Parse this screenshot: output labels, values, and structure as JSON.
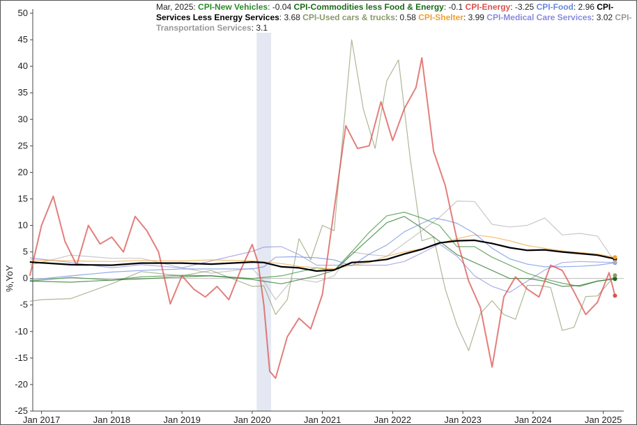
{
  "chart_data": {
    "type": "line",
    "title": "",
    "xlabel": "",
    "ylabel": "%,YoY",
    "ylim": [
      -25,
      50
    ],
    "yticks": [
      50,
      45,
      40,
      35,
      30,
      25,
      20,
      15,
      10,
      5,
      0,
      -5,
      -10,
      -15,
      -20,
      -25
    ],
    "xlim": [
      "2016-11",
      "2025-04"
    ],
    "xticks": [
      "Jan 2017",
      "Jan 2018",
      "Jan 2019",
      "Jan 2020",
      "Jan 2021",
      "Jan 2022",
      "Jan 2023",
      "Jan 2024",
      "Jan 2025"
    ],
    "shaded_period": [
      "2020-02",
      "2020-04"
    ],
    "grid": false,
    "legend_placement": "top",
    "legend_date": "Mar, 2025:",
    "series": [
      {
        "name": "CPI-New Vehicles",
        "color": "#2a8a2a",
        "value_label": "-0.04",
        "x": [
          "2016-11",
          "2017-06",
          "2018-01",
          "2018-06",
          "2019-01",
          "2019-06",
          "2020-01",
          "2020-06",
          "2020-12",
          "2021-03",
          "2021-06",
          "2021-09",
          "2021-12",
          "2022-03",
          "2022-06",
          "2022-09",
          "2022-12",
          "2023-03",
          "2023-06",
          "2023-09",
          "2023-12",
          "2024-03",
          "2024-06",
          "2024-09",
          "2024-12",
          "2025-03"
        ],
        "y": [
          -0.5,
          0.2,
          -0.3,
          0.3,
          0.6,
          0.5,
          0.0,
          0.5,
          2.0,
          1.5,
          5.0,
          8.7,
          11.8,
          12.5,
          11.4,
          10.0,
          6.0,
          6.0,
          4.0,
          2.5,
          1.0,
          -0.1,
          -0.9,
          -1.5,
          -0.5,
          -0.04
        ]
      },
      {
        "name": "CPI-Commodities less Food & Energy",
        "color": "#1a6a1a",
        "value_label": "-0.1",
        "x": [
          "2016-11",
          "2017-06",
          "2018-01",
          "2018-06",
          "2019-01",
          "2019-06",
          "2020-01",
          "2020-06",
          "2020-12",
          "2021-03",
          "2021-06",
          "2021-09",
          "2021-12",
          "2022-03",
          "2022-06",
          "2022-09",
          "2022-12",
          "2023-03",
          "2023-06",
          "2023-09",
          "2023-12",
          "2024-03",
          "2024-06",
          "2024-09",
          "2024-12",
          "2025-03"
        ],
        "y": [
          -0.5,
          -0.7,
          -0.3,
          -0.1,
          0.3,
          0.5,
          -0.2,
          -1.0,
          0.5,
          1.5,
          4.5,
          7.5,
          10.5,
          11.7,
          9.5,
          7.0,
          4.5,
          3.0,
          1.5,
          0.0,
          0.0,
          -0.5,
          -1.5,
          -1.3,
          -0.5,
          -0.1
        ]
      },
      {
        "name": "CPI-Energy",
        "color": "#d9534f",
        "value_label": "-3.25",
        "x": [
          "2016-11",
          "2017-01",
          "2017-03",
          "2017-05",
          "2017-07",
          "2017-09",
          "2017-11",
          "2018-01",
          "2018-03",
          "2018-05",
          "2018-07",
          "2018-09",
          "2018-11",
          "2019-01",
          "2019-03",
          "2019-05",
          "2019-07",
          "2019-09",
          "2019-11",
          "2020-01",
          "2020-02",
          "2020-03",
          "2020-04",
          "2020-05",
          "2020-07",
          "2020-09",
          "2020-11",
          "2021-01",
          "2021-03",
          "2021-05",
          "2021-07",
          "2021-09",
          "2021-11",
          "2022-01",
          "2022-03",
          "2022-05",
          "2022-06",
          "2022-08",
          "2022-10",
          "2022-12",
          "2023-02",
          "2023-04",
          "2023-06",
          "2023-08",
          "2023-10",
          "2023-12",
          "2024-02",
          "2024-04",
          "2024-06",
          "2024-08",
          "2024-10",
          "2024-12",
          "2025-02",
          "2025-03"
        ],
        "y": [
          0.5,
          10.0,
          15.5,
          7.0,
          2.5,
          10.0,
          6.5,
          7.8,
          5.0,
          11.7,
          9.0,
          5.0,
          -4.8,
          0.5,
          -2.0,
          -3.5,
          -1.5,
          -4.0,
          1.5,
          6.4,
          3.0,
          -5.0,
          -17.5,
          -18.8,
          -11.0,
          -7.5,
          -9.5,
          -3.0,
          13.0,
          28.8,
          24.5,
          25.0,
          33.3,
          26.0,
          32.0,
          36.0,
          41.6,
          24.0,
          17.5,
          7.3,
          -0.5,
          -5.5,
          -16.7,
          -3.5,
          0.3,
          -2.0,
          -3.5,
          2.5,
          1.5,
          -2.5,
          -6.8,
          -4.5,
          1.1,
          -3.25
        ]
      },
      {
        "name": "CPI-Food",
        "color": "#6688dd",
        "value_label": "2.96",
        "x": [
          "2016-11",
          "2017-06",
          "2018-01",
          "2018-06",
          "2019-01",
          "2019-06",
          "2020-01",
          "2020-03",
          "2020-05",
          "2020-08",
          "2020-12",
          "2021-03",
          "2021-06",
          "2021-09",
          "2021-12",
          "2022-03",
          "2022-06",
          "2022-08",
          "2022-10",
          "2022-12",
          "2023-03",
          "2023-06",
          "2023-09",
          "2023-12",
          "2024-03",
          "2024-06",
          "2024-09",
          "2024-12",
          "2025-03"
        ],
        "y": [
          -0.3,
          0.5,
          1.2,
          1.5,
          1.8,
          1.8,
          1.8,
          2.2,
          4.0,
          4.1,
          3.9,
          3.5,
          2.4,
          4.6,
          6.3,
          8.8,
          10.4,
          11.4,
          11.0,
          10.4,
          8.5,
          5.7,
          3.7,
          2.7,
          2.2,
          2.2,
          2.3,
          2.5,
          2.96
        ]
      },
      {
        "name": "CPI-Services Less Energy Services",
        "color": "#000000",
        "value_label": "3.68",
        "x": [
          "2016-11",
          "2017-06",
          "2018-01",
          "2018-06",
          "2019-01",
          "2019-06",
          "2020-01",
          "2020-03",
          "2020-06",
          "2020-09",
          "2020-12",
          "2021-03",
          "2021-06",
          "2021-09",
          "2021-12",
          "2022-03",
          "2022-06",
          "2022-09",
          "2022-12",
          "2023-03",
          "2023-06",
          "2023-09",
          "2023-12",
          "2024-03",
          "2024-06",
          "2024-09",
          "2024-12",
          "2025-03"
        ],
        "y": [
          3.1,
          2.6,
          2.5,
          2.9,
          2.9,
          2.7,
          3.1,
          3.0,
          2.2,
          2.0,
          1.4,
          1.6,
          3.0,
          3.2,
          3.6,
          4.6,
          5.5,
          6.7,
          7.1,
          7.2,
          6.6,
          5.8,
          5.3,
          5.4,
          5.0,
          4.7,
          4.4,
          3.68
        ]
      },
      {
        "name": "CPI-Used cars & trucks",
        "color": "#8a9a6a",
        "value_label": "0.58",
        "x": [
          "2016-11",
          "2017-01",
          "2017-06",
          "2018-01",
          "2018-06",
          "2019-01",
          "2019-06",
          "2020-01",
          "2020-03",
          "2020-05",
          "2020-07",
          "2020-09",
          "2020-11",
          "2021-01",
          "2021-03",
          "2021-04",
          "2021-06",
          "2021-08",
          "2021-10",
          "2021-12",
          "2022-02",
          "2022-04",
          "2022-06",
          "2022-08",
          "2022-10",
          "2022-12",
          "2023-02",
          "2023-04",
          "2023-06",
          "2023-08",
          "2023-10",
          "2023-12",
          "2024-02",
          "2024-04",
          "2024-06",
          "2024-08",
          "2024-10",
          "2024-12",
          "2025-03"
        ],
        "y": [
          -4.3,
          -4.0,
          -3.8,
          -1.0,
          1.3,
          0.5,
          1.5,
          -1.5,
          -1.4,
          -6.8,
          -4.0,
          7.5,
          3.5,
          10.0,
          9.0,
          21.0,
          45.0,
          31.9,
          24.5,
          37.3,
          41.2,
          22.7,
          7.1,
          7.8,
          -2.0,
          -8.8,
          -13.6,
          -6.6,
          -4.2,
          -6.8,
          -7.7,
          -1.3,
          -1.3,
          -1.7,
          -9.8,
          -9.2,
          -3.4,
          -3.3,
          0.58
        ]
      },
      {
        "name": "CPI-Shelter",
        "color": "#f0a030",
        "value_label": "3.99",
        "x": [
          "2016-11",
          "2017-06",
          "2018-01",
          "2018-06",
          "2019-01",
          "2019-06",
          "2020-01",
          "2020-06",
          "2020-09",
          "2020-12",
          "2021-03",
          "2021-06",
          "2021-09",
          "2021-12",
          "2022-03",
          "2022-06",
          "2022-09",
          "2022-12",
          "2023-03",
          "2023-06",
          "2023-09",
          "2023-12",
          "2024-03",
          "2024-06",
          "2024-09",
          "2024-12",
          "2025-03"
        ],
        "y": [
          3.5,
          3.3,
          3.2,
          3.4,
          3.3,
          3.5,
          3.3,
          2.8,
          2.3,
          2.0,
          1.8,
          2.5,
          3.0,
          4.2,
          5.0,
          5.6,
          6.6,
          7.5,
          8.2,
          7.8,
          7.1,
          6.2,
          5.7,
          5.2,
          4.9,
          4.6,
          3.99
        ]
      },
      {
        "name": "CPI-Medical Care Services",
        "color": "#8a8ae0",
        "value_label": "3.02",
        "x": [
          "2016-11",
          "2017-06",
          "2018-01",
          "2018-06",
          "2019-01",
          "2019-06",
          "2020-01",
          "2020-03",
          "2020-06",
          "2020-09",
          "2020-12",
          "2021-03",
          "2021-06",
          "2021-09",
          "2021-12",
          "2022-03",
          "2022-06",
          "2022-09",
          "2022-12",
          "2023-03",
          "2023-06",
          "2023-09",
          "2023-12",
          "2024-03",
          "2024-06",
          "2024-09",
          "2024-12",
          "2025-03"
        ],
        "y": [
          3.9,
          3.0,
          2.0,
          2.6,
          2.0,
          3.3,
          5.1,
          5.9,
          6.0,
          4.5,
          2.5,
          2.5,
          2.5,
          2.5,
          2.5,
          3.2,
          4.8,
          6.5,
          4.2,
          0.5,
          -1.5,
          -2.6,
          -0.5,
          1.6,
          3.0,
          3.2,
          3.1,
          3.02
        ]
      },
      {
        "name": "CPI-Transportation Services",
        "color": "#b0b0b0",
        "value_label": "3.1",
        "x": [
          "2016-11",
          "2017-06",
          "2018-01",
          "2018-06",
          "2019-01",
          "2019-06",
          "2020-01",
          "2020-03",
          "2020-05",
          "2020-08",
          "2020-12",
          "2021-03",
          "2021-06",
          "2021-09",
          "2021-12",
          "2022-03",
          "2022-06",
          "2022-09",
          "2022-12",
          "2023-03",
          "2023-06",
          "2023-09",
          "2023-12",
          "2024-03",
          "2024-06",
          "2024-09",
          "2024-12",
          "2025-03"
        ],
        "y": [
          2.5,
          4.4,
          3.8,
          3.8,
          2.0,
          1.0,
          1.9,
          -0.5,
          -4.0,
          0.0,
          -0.7,
          0.5,
          5.0,
          4.5,
          4.2,
          6.6,
          9.0,
          11.5,
          14.6,
          14.5,
          10.2,
          9.7,
          10.0,
          11.4,
          8.2,
          8.5,
          8.0,
          3.1
        ]
      }
    ]
  }
}
